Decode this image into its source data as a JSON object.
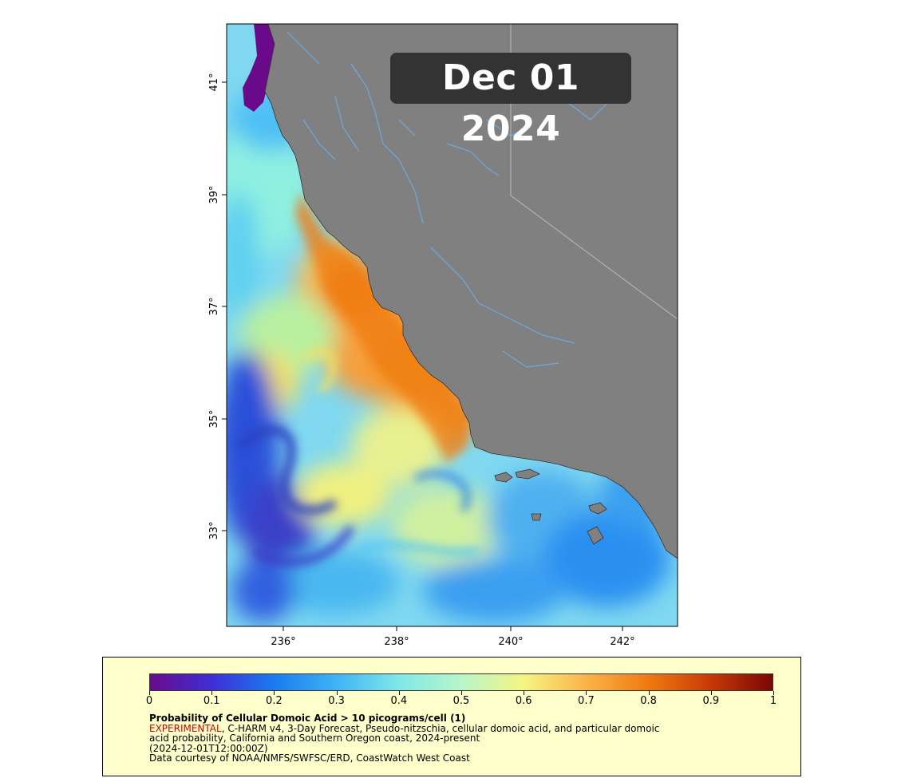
{
  "date_badge": "Dec 01 2024",
  "lat_ticks": [
    "41°",
    "39°",
    "37°",
    "35°",
    "33°"
  ],
  "lon_ticks": [
    "236°",
    "238°",
    "240°",
    "242°"
  ],
  "colors": {
    "land": "#808080",
    "rivers": "#6fa8dc",
    "legend_bg": "#ffffcc",
    "badge_bg": "#333333",
    "experimental": "#cc0000"
  },
  "colorbar": {
    "labels": [
      "0",
      "0.1",
      "0.2",
      "0.3",
      "0.4",
      "0.5",
      "0.6",
      "0.7",
      "0.8",
      "0.9",
      "1"
    ],
    "stops": [
      "#6a0a8a",
      "#3d2fd6",
      "#1a7cf0",
      "#3fb4f5",
      "#7fe8e8",
      "#b8f5c8",
      "#f5f580",
      "#fbb44a",
      "#f07a10",
      "#c73a06",
      "#7a0606"
    ]
  },
  "legend": {
    "title": "Probability of Cellular Domoic Acid > 10 picograms/cell (1)",
    "tag": "EXPERIMENTAL",
    "line1_rest": ", C-HARM v4, 3-Day Forecast, Pseudo-nitzschia, cellular domoic acid, and particular domoic",
    "line2": "acid probability, California and Southern Oregon coast, 2024-present",
    "line3": "(2024-12-01T12:00:00Z)",
    "line4": "Data courtesy of NOAA/NMFS/SWFSC/ERD, CoastWatch West Coast"
  }
}
